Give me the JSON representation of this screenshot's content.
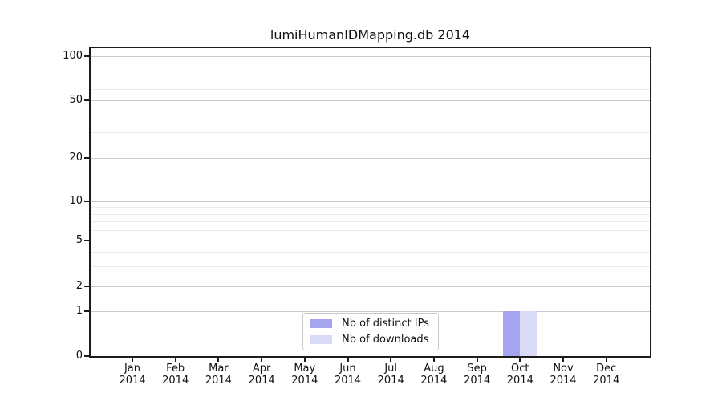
{
  "chart_data": {
    "type": "bar",
    "title": "lumiHumanIDMapping.db 2014",
    "xlabel": "",
    "ylabel": "",
    "categories": [
      "Jan 2014",
      "Feb 2014",
      "Mar 2014",
      "Apr 2014",
      "May 2014",
      "Jun 2014",
      "Jul 2014",
      "Aug 2014",
      "Sep 2014",
      "Oct 2014",
      "Nov 2014",
      "Dec 2014"
    ],
    "series": [
      {
        "name": "Nb of distinct IPs",
        "color": "#a4a4f0",
        "values": [
          0,
          0,
          0,
          0,
          0,
          0,
          0,
          0,
          0,
          1,
          0,
          0
        ]
      },
      {
        "name": "Nb of downloads",
        "color": "#d9d9f8",
        "values": [
          0,
          0,
          0,
          0,
          0,
          0,
          0,
          0,
          0,
          1,
          0,
          0
        ]
      }
    ],
    "y_axis": {
      "scale": "symlog",
      "ticks": [
        0,
        1,
        2,
        5,
        10,
        20,
        50,
        100
      ],
      "minor_ticks": [
        3,
        4,
        6,
        7,
        8,
        9,
        30,
        40,
        60,
        70,
        80,
        90
      ],
      "range": [
        0,
        115
      ]
    },
    "grid": "horizontal, major and log-minor lines",
    "legend_position": "inside bottom-center",
    "colors": {
      "major_grid": "#cbcbcb",
      "minor_grid": "#ececec",
      "axis": "#1c1c1c",
      "background": "#ffffff"
    }
  }
}
